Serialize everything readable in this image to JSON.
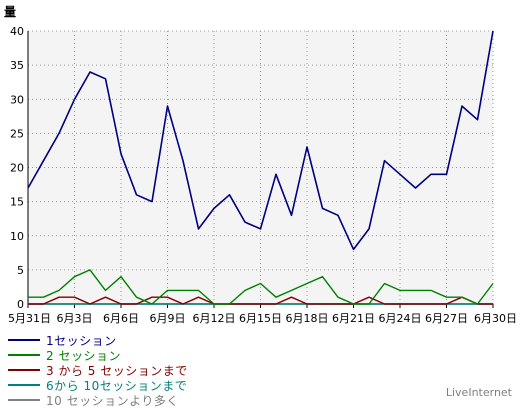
{
  "chart_data": {
    "type": "line",
    "ylabel": "量",
    "ylim": [
      0,
      40
    ],
    "yticks": [
      "0",
      "5",
      "10",
      "15",
      "20",
      "25",
      "30",
      "35",
      "40"
    ],
    "xtick_labels": [
      "5月31日",
      "6月3日",
      "6月6日",
      "6月9日",
      "6月12日",
      "6月15日",
      "6月18日",
      "6月21日",
      "6月24日",
      "6月27日",
      "6月30日"
    ],
    "x_dates": [
      "5/31",
      "6/1",
      "6/2",
      "6/3",
      "6/4",
      "6/5",
      "6/6",
      "6/7",
      "6/8",
      "6/9",
      "6/10",
      "6/11",
      "6/12",
      "6/13",
      "6/14",
      "6/15",
      "6/16",
      "6/17",
      "6/18",
      "6/19",
      "6/20",
      "6/21",
      "6/22",
      "6/23",
      "6/24",
      "6/25",
      "6/26",
      "6/27",
      "6/28",
      "6/29",
      "6/30"
    ],
    "grid": true,
    "legend_position": "bottom-left",
    "series": [
      {
        "name": "1セッション",
        "color": "#000080",
        "values": [
          17,
          21,
          25,
          30,
          34,
          33,
          22,
          16,
          15,
          29,
          21,
          11,
          14,
          16,
          12,
          11,
          19,
          13,
          23,
          14,
          13,
          8,
          11,
          21,
          19,
          17,
          19,
          19,
          29,
          27,
          40
        ]
      },
      {
        "name": "2 セッション",
        "color": "#008000",
        "values": [
          1,
          1,
          2,
          4,
          5,
          2,
          4,
          1,
          0,
          2,
          2,
          2,
          0,
          0,
          2,
          3,
          1,
          2,
          3,
          4,
          1,
          0,
          0,
          3,
          2,
          2,
          2,
          1,
          1,
          0,
          3
        ]
      },
      {
        "name": "3 から 5 セッションまで",
        "color": "#800000",
        "values": [
          0,
          0,
          1,
          1,
          0,
          1,
          0,
          0,
          1,
          1,
          0,
          1,
          0,
          0,
          0,
          0,
          0,
          1,
          0,
          0,
          0,
          0,
          1,
          0,
          0,
          0,
          0,
          0,
          1,
          0,
          0
        ]
      },
      {
        "name": "6から 10セッションまで",
        "color": "#008080",
        "values": [
          0,
          0,
          0,
          0,
          0,
          0,
          0,
          0,
          0,
          0,
          0,
          0,
          0,
          0,
          0,
          0,
          0,
          0,
          0,
          0,
          0,
          0,
          0,
          0,
          0,
          0,
          0,
          0,
          0,
          0,
          0
        ]
      },
      {
        "name": "10 セッションより多く",
        "color": "#808080",
        "values": [
          0,
          0,
          0,
          0,
          0,
          0,
          0,
          0,
          0,
          0,
          0,
          0,
          0,
          0,
          0,
          0,
          0,
          0,
          0,
          0,
          0,
          0,
          0,
          0,
          0,
          0,
          0,
          0,
          0,
          0,
          0
        ]
      }
    ]
  },
  "watermark": "LiveInternet"
}
